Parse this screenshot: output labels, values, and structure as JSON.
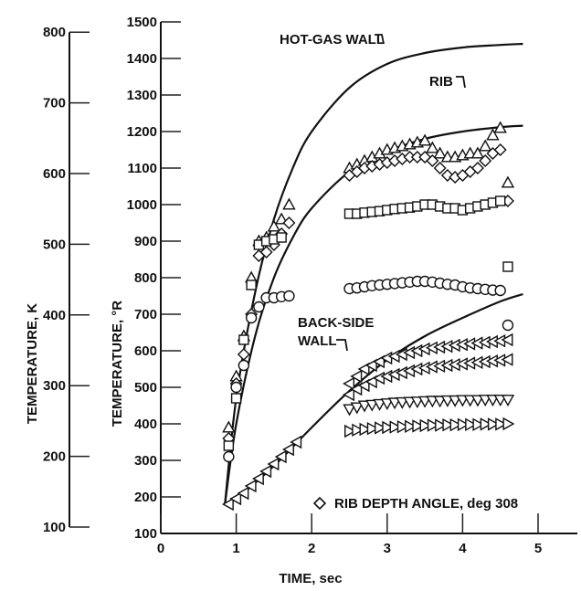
{
  "chart_data": {
    "type": "line",
    "xlabel": "TIME, sec",
    "ylabel_left": "TEMPERATURE, K",
    "ylabel_right": "TEMPERATURE, °R",
    "x_ticks": [
      0,
      1,
      2,
      3,
      4,
      5
    ],
    "xlim": [
      0,
      5.5
    ],
    "y_ticks_R": [
      100,
      200,
      300,
      400,
      500,
      600,
      700,
      800,
      900,
      1000,
      1100,
      1200,
      1300,
      1400,
      1500
    ],
    "ylim_R": [
      100,
      1500
    ],
    "y_ticks_K": [
      100,
      200,
      300,
      400,
      500,
      600,
      700,
      800
    ],
    "ylim_K": [
      100,
      800
    ],
    "legend_text": "RIB DEPTH ANGLE, deg 308",
    "legend_marker": "diamond",
    "series": [
      {
        "name": "HOT-GAS WALL",
        "kind": "curve",
        "x": [
          0.85,
          1.0,
          1.25,
          1.5,
          1.75,
          2.0,
          2.5,
          3.0,
          3.5,
          4.0,
          4.5,
          4.8
        ],
        "y": [
          180,
          470,
          760,
          960,
          1100,
          1200,
          1320,
          1385,
          1415,
          1430,
          1437,
          1440
        ]
      },
      {
        "name": "RIB",
        "kind": "curve",
        "x": [
          0.85,
          1.0,
          1.25,
          1.5,
          1.75,
          2.0,
          2.5,
          3.0,
          3.5,
          4.0,
          4.5,
          4.8
        ],
        "y": [
          180,
          400,
          640,
          800,
          910,
          990,
          1090,
          1145,
          1180,
          1200,
          1212,
          1216
        ]
      },
      {
        "name": "BACK-SIDE WALL",
        "kind": "curve",
        "x": [
          0.85,
          1.0,
          1.5,
          2.0,
          2.5,
          3.0,
          3.5,
          4.0,
          4.5,
          4.8
        ],
        "y": [
          180,
          195,
          285,
          390,
          490,
          575,
          640,
          690,
          735,
          755
        ]
      },
      {
        "marker": "triangle-up",
        "x": [
          0.9,
          1.0,
          1.1,
          1.2,
          1.3,
          1.4,
          1.5,
          1.6,
          1.7,
          2.5,
          2.6,
          2.7,
          2.8,
          2.9,
          3.0,
          3.1,
          3.2,
          3.3,
          3.4,
          3.5,
          3.6,
          3.7,
          3.8,
          3.9,
          4.0,
          4.1,
          4.2,
          4.3,
          4.4,
          4.5,
          4.6
        ],
        "y": [
          390,
          530,
          640,
          800,
          900,
          910,
          940,
          960,
          1000,
          1100,
          1110,
          1120,
          1130,
          1140,
          1150,
          1155,
          1160,
          1165,
          1170,
          1175,
          1155,
          1140,
          1130,
          1130,
          1135,
          1140,
          1140,
          1160,
          1190,
          1210,
          1060
        ]
      },
      {
        "marker": "diamond",
        "x": [
          0.9,
          1.0,
          1.1,
          1.2,
          1.3,
          1.4,
          1.5,
          1.6,
          1.7,
          2.5,
          2.6,
          2.7,
          2.8,
          2.9,
          3.0,
          3.1,
          3.2,
          3.3,
          3.4,
          3.5,
          3.6,
          3.7,
          3.8,
          3.9,
          4.0,
          4.1,
          4.2,
          4.3,
          4.4,
          4.5,
          4.6
        ],
        "y": [
          360,
          510,
          590,
          700,
          860,
          870,
          890,
          920,
          950,
          1080,
          1090,
          1100,
          1105,
          1110,
          1115,
          1120,
          1125,
          1130,
          1130,
          1130,
          1120,
          1100,
          1080,
          1075,
          1080,
          1090,
          1100,
          1120,
          1140,
          1150,
          1010
        ]
      },
      {
        "marker": "square",
        "x": [
          0.9,
          1.0,
          1.1,
          1.2,
          1.3,
          1.4,
          1.5,
          1.6,
          2.5,
          2.6,
          2.7,
          2.8,
          2.9,
          3.0,
          3.1,
          3.2,
          3.3,
          3.4,
          3.5,
          3.6,
          3.7,
          3.8,
          3.9,
          4.0,
          4.1,
          4.2,
          4.3,
          4.4,
          4.5,
          4.6
        ],
        "y": [
          340,
          470,
          630,
          780,
          890,
          900,
          905,
          910,
          975,
          975,
          978,
          980,
          982,
          985,
          988,
          990,
          992,
          995,
          1000,
          1000,
          995,
          990,
          990,
          985,
          990,
          995,
          1000,
          1005,
          1010,
          830
        ]
      },
      {
        "marker": "circle",
        "x": [
          0.9,
          1.0,
          1.1,
          1.2,
          1.3,
          1.4,
          1.5,
          1.6,
          1.7,
          2.5,
          2.6,
          2.7,
          2.8,
          2.9,
          3.0,
          3.1,
          3.2,
          3.3,
          3.4,
          3.5,
          3.6,
          3.7,
          3.8,
          3.9,
          4.0,
          4.1,
          4.2,
          4.3,
          4.4,
          4.5,
          4.6
        ],
        "y": [
          310,
          500,
          560,
          690,
          720,
          745,
          745,
          748,
          750,
          770,
          772,
          775,
          778,
          780,
          782,
          784,
          786,
          788,
          790,
          790,
          788,
          785,
          782,
          780,
          775,
          772,
          770,
          768,
          766,
          765,
          670
        ]
      },
      {
        "marker": "triangle-left",
        "x": [
          0.9,
          1.0,
          1.1,
          1.2,
          1.3,
          1.4,
          1.5,
          1.6,
          1.7,
          1.8,
          2.5,
          2.6,
          2.7,
          2.8,
          2.9,
          3.0,
          3.1,
          3.2,
          3.3,
          3.4,
          3.5,
          3.6,
          3.7,
          3.8,
          3.9,
          4.0,
          4.1,
          4.2,
          4.3,
          4.4,
          4.5,
          4.6
        ],
        "y": [
          180,
          195,
          210,
          230,
          250,
          270,
          290,
          310,
          330,
          350,
          510,
          530,
          550,
          560,
          570,
          580,
          585,
          590,
          595,
          600,
          605,
          608,
          610,
          612,
          615,
          617,
          619,
          621,
          623,
          625,
          627,
          630
        ]
      },
      {
        "marker": "triangle-left",
        "x": [
          2.5,
          2.6,
          2.7,
          2.8,
          2.9,
          3.0,
          3.1,
          3.2,
          3.3,
          3.4,
          3.5,
          3.6,
          3.7,
          3.8,
          3.9,
          4.0,
          4.1,
          4.2,
          4.3,
          4.4,
          4.5,
          4.6
        ],
        "y": [
          480,
          495,
          505,
          515,
          525,
          530,
          535,
          540,
          545,
          550,
          553,
          556,
          558,
          560,
          562,
          564,
          566,
          568,
          570,
          572,
          574,
          576
        ]
      },
      {
        "marker": "triangle-down",
        "x": [
          2.5,
          2.6,
          2.7,
          2.8,
          2.9,
          3.0,
          3.1,
          3.2,
          3.3,
          3.4,
          3.5,
          3.6,
          3.7,
          3.8,
          3.9,
          4.0,
          4.1,
          4.2,
          4.3,
          4.4,
          4.5,
          4.6
        ],
        "y": [
          440,
          445,
          450,
          452,
          454,
          456,
          458,
          459,
          460,
          461,
          462,
          463,
          463,
          464,
          464,
          465,
          465,
          465,
          466,
          466,
          466,
          466
        ]
      },
      {
        "marker": "triangle-right",
        "x": [
          2.5,
          2.6,
          2.7,
          2.8,
          2.9,
          3.0,
          3.1,
          3.2,
          3.3,
          3.4,
          3.5,
          3.6,
          3.7,
          3.8,
          3.9,
          4.0,
          4.1,
          4.2,
          4.3,
          4.4,
          4.5,
          4.6
        ],
        "y": [
          380,
          383,
          385,
          387,
          389,
          390,
          391,
          392,
          393,
          394,
          395,
          396,
          396,
          397,
          397,
          398,
          398,
          398,
          399,
          399,
          399,
          400
        ]
      }
    ]
  }
}
